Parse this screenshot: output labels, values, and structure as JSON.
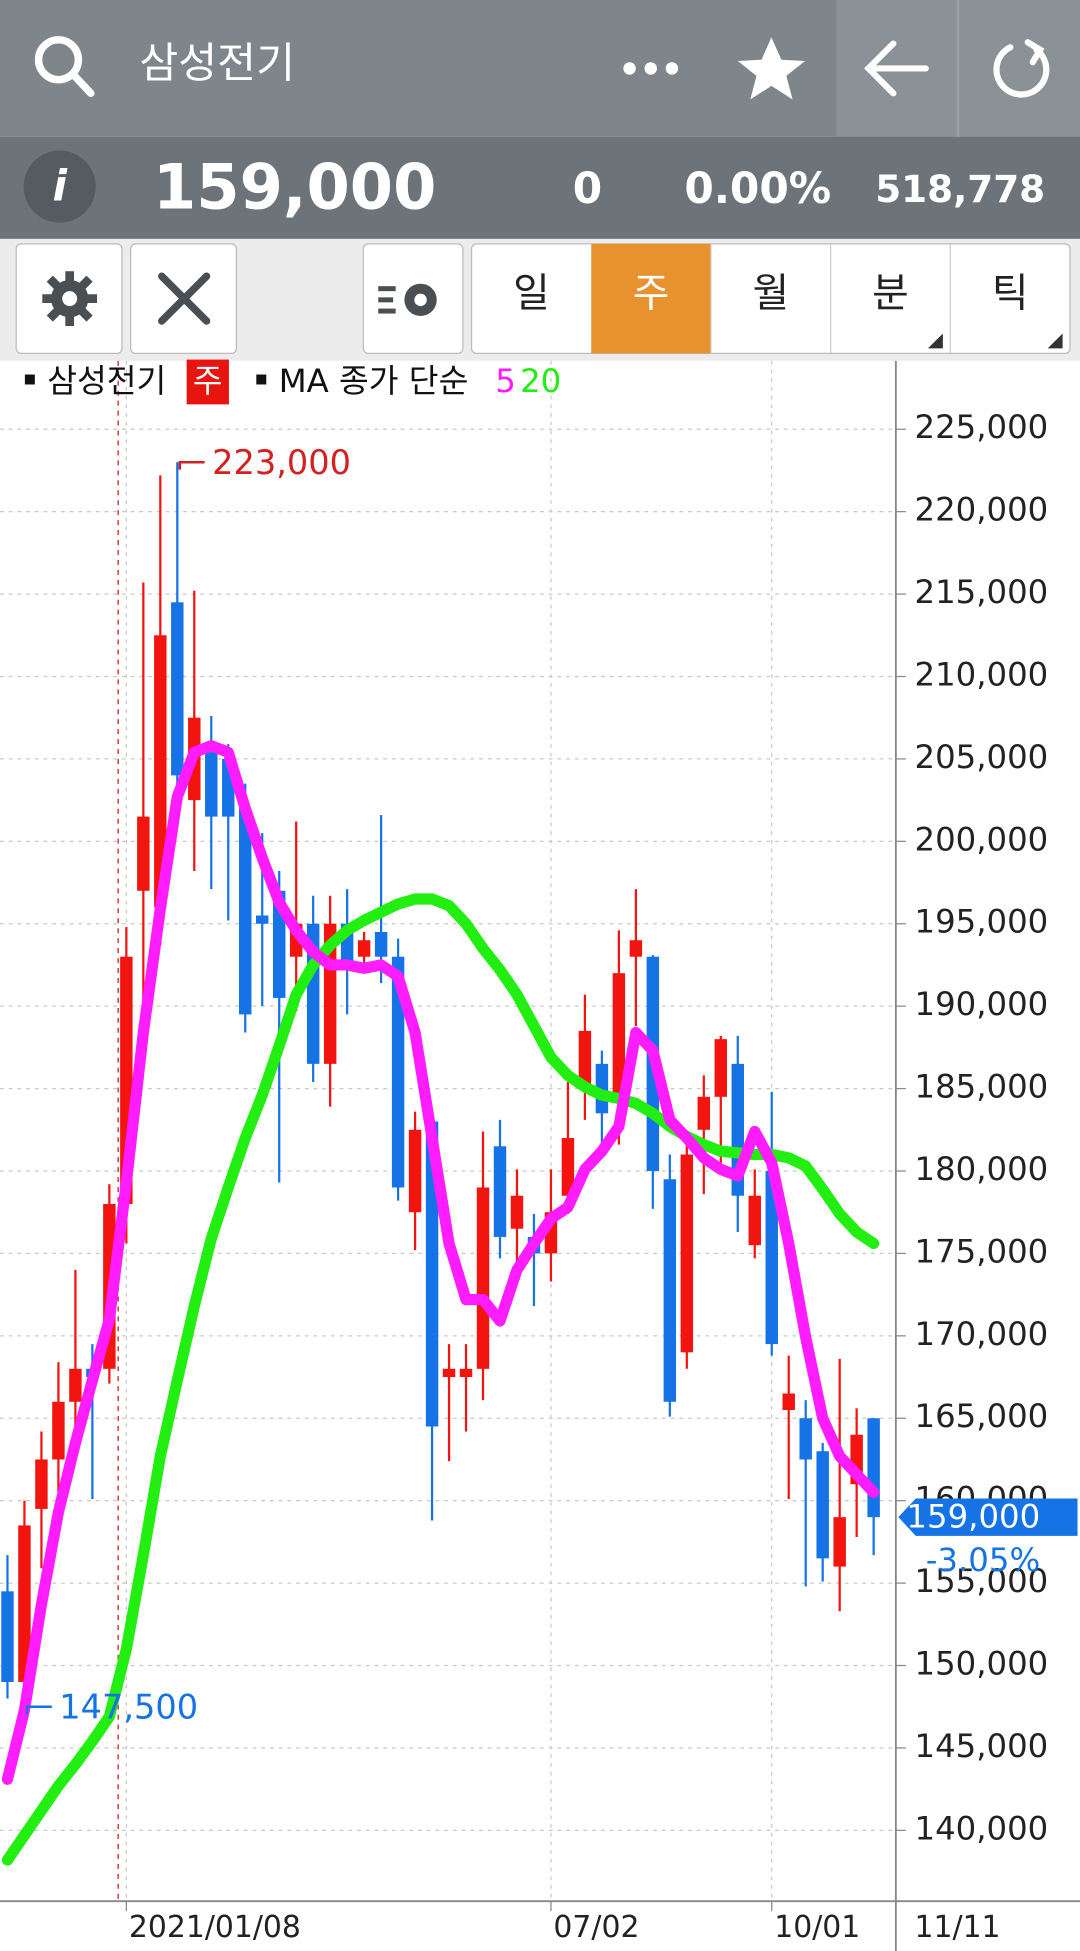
{
  "header": {
    "title": "삼성전기"
  },
  "quote": {
    "price": "159,000",
    "change": "0",
    "change_pct": "0.00%",
    "volume": "518,778"
  },
  "toolbar": {
    "tabs": [
      "일",
      "주",
      "월",
      "분",
      "틱"
    ],
    "active": 1
  },
  "chart_data": {
    "type": "candlestick",
    "legend": {
      "symbol": "삼성전기",
      "period": "주",
      "ma_label": "MA 종가 단순"
    },
    "categories": [
      null,
      null,
      null,
      null,
      null,
      null,
      null,
      "2021/01/08",
      null,
      null,
      null,
      null,
      null,
      null,
      null,
      null,
      null,
      null,
      null,
      null,
      null,
      null,
      null,
      null,
      null,
      null,
      null,
      null,
      null,
      null,
      null,
      null,
      "07/02",
      null,
      null,
      null,
      null,
      null,
      null,
      null,
      null,
      null,
      null,
      null,
      null,
      "10/01",
      null,
      null,
      null,
      null,
      null,
      "11/11"
    ],
    "open": [
      154500,
      149000,
      159500,
      162500,
      166000,
      168000,
      168000,
      178000,
      197000,
      196000,
      214500,
      202500,
      206000,
      205000,
      202000,
      195500,
      197000,
      193000,
      195000,
      186500,
      195000,
      193000,
      194500,
      193000,
      177500,
      183000,
      167500,
      167500,
      168000,
      181500,
      176500,
      176000,
      175000,
      178500,
      185000,
      186500,
      184500,
      193000,
      193000,
      179500,
      169000,
      182500,
      184500,
      186500,
      175500,
      180000,
      165500,
      165000,
      163000,
      156000,
      161000,
      165000
    ],
    "high": [
      156700,
      160000,
      164200,
      168400,
      174000,
      169500,
      179200,
      194800,
      215700,
      222200,
      223000,
      215200,
      207600,
      205900,
      203500,
      200500,
      198200,
      201200,
      196700,
      196700,
      197100,
      194500,
      201600,
      194100,
      183600,
      183100,
      169500,
      169500,
      182400,
      183100,
      180100,
      177400,
      180100,
      185400,
      190700,
      187300,
      194600,
      197100,
      193100,
      181000,
      182000,
      185800,
      188200,
      188200,
      180100,
      184800,
      168800,
      166100,
      163500,
      168600,
      165600,
      165000
    ],
    "low": [
      148000,
      147500,
      155900,
      160500,
      162700,
      160100,
      167100,
      175600,
      186300,
      193700,
      201200,
      198200,
      197100,
      195200,
      188400,
      190000,
      179300,
      189700,
      185400,
      183900,
      189500,
      192000,
      191400,
      178200,
      175200,
      158800,
      162400,
      164200,
      166100,
      174700,
      173300,
      171800,
      173300,
      177400,
      183100,
      181200,
      181600,
      188800,
      177700,
      165100,
      168000,
      178600,
      180000,
      176300,
      174700,
      168800,
      160100,
      154800,
      155100,
      153300,
      157800,
      156700
    ],
    "close": [
      149000,
      158500,
      162500,
      166000,
      168000,
      167500,
      178000,
      193000,
      201500,
      212500,
      204000,
      207500,
      201500,
      201500,
      189500,
      195000,
      190500,
      195000,
      186500,
      195000,
      192500,
      194000,
      193000,
      179000,
      182500,
      164500,
      168000,
      168000,
      179000,
      176000,
      178500,
      175000,
      177500,
      182000,
      188500,
      183500,
      192000,
      194000,
      180000,
      166000,
      181000,
      184500,
      188000,
      178500,
      178500,
      169500,
      166500,
      162500,
      156500,
      159000,
      164000,
      159000
    ],
    "up_color": "#f2140f",
    "down_color": "#1673e6",
    "series": [
      {
        "name": "5",
        "color": "#ff1cff",
        "values": [
          143100,
          147300,
          153700,
          159300,
          163500,
          167300,
          171000,
          179300,
          188400,
          195900,
          202700,
          205400,
          205800,
          205400,
          202000,
          199000,
          196300,
          194600,
          193300,
          192500,
          192500,
          192300,
          192500,
          191800,
          188400,
          182000,
          175600,
          172200,
          172200,
          170900,
          174000,
          175600,
          177100,
          177800,
          180100,
          181200,
          182700,
          188400,
          187300,
          183100,
          182000,
          180800,
          180100,
          179700,
          182400,
          180500,
          175600,
          169900,
          165000,
          162700,
          161600,
          160500
        ]
      },
      {
        "name": "20",
        "color": "#22ee11",
        "values": [
          138200,
          139700,
          141200,
          142700,
          144000,
          145400,
          146900,
          151000,
          156700,
          162700,
          167300,
          171800,
          175900,
          179000,
          182000,
          184600,
          187600,
          190700,
          192500,
          193700,
          194600,
          195200,
          195700,
          196200,
          196500,
          196500,
          196100,
          195000,
          193500,
          192200,
          190700,
          188800,
          186900,
          185800,
          185100,
          184600,
          184400,
          184100,
          183500,
          182700,
          182100,
          181600,
          181200,
          181100,
          181000,
          181000,
          180800,
          180300,
          178900,
          177400,
          176300,
          175600
        ]
      }
    ],
    "ylim": [
      135700,
      229150
    ],
    "yticks": [
      {
        "value": 140000,
        "label": "140,000"
      },
      {
        "value": 145000,
        "label": "145,000"
      },
      {
        "value": 150000,
        "label": "150,000"
      },
      {
        "value": 155000,
        "label": "155,000"
      },
      {
        "value": 160000,
        "label": "160,000"
      },
      {
        "value": 165000,
        "label": "165,000"
      },
      {
        "value": 170000,
        "label": "170,000"
      },
      {
        "value": 175000,
        "label": "175,000"
      },
      {
        "value": 180000,
        "label": "180,000"
      },
      {
        "value": 185000,
        "label": "185,000"
      },
      {
        "value": 190000,
        "label": "190,000"
      },
      {
        "value": 195000,
        "label": "195,000"
      },
      {
        "value": 200000,
        "label": "200,000"
      },
      {
        "value": 205000,
        "label": "205,000"
      },
      {
        "value": 210000,
        "label": "210,000"
      },
      {
        "value": 215000,
        "label": "215,000"
      },
      {
        "value": 220000,
        "label": "220,000"
      },
      {
        "value": 225000,
        "label": "225,000"
      }
    ],
    "grid": true,
    "annotations": [
      {
        "text": "223,000",
        "value": 223000,
        "index": 10,
        "color": "#d42020"
      },
      {
        "text": "147,500",
        "value": 147500,
        "index": 1,
        "color": "#1673e6"
      }
    ],
    "last_price": {
      "value": 159000,
      "label": "159,000",
      "change": "-3.05%"
    }
  }
}
